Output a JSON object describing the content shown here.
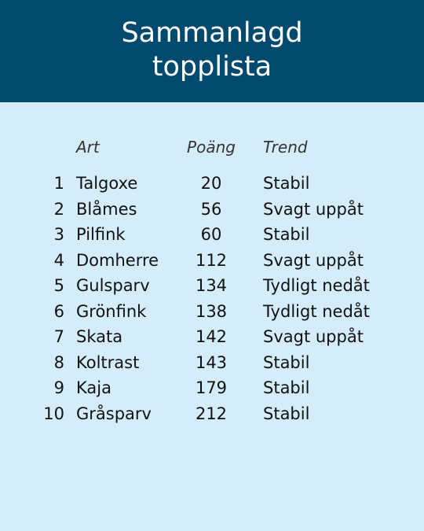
{
  "header": {
    "title": "Sammanlagd topplista",
    "background": "#004a6e"
  },
  "table": {
    "columns": {
      "species": "Art",
      "points": "Poäng",
      "trend": "Trend"
    },
    "rows": [
      {
        "rank": "1",
        "species": "Talgoxe",
        "points": "20",
        "trend": "Stabil"
      },
      {
        "rank": "2",
        "species": "Blåmes",
        "points": "56",
        "trend": "Svagt uppåt"
      },
      {
        "rank": "3",
        "species": "Pilfink",
        "points": "60",
        "trend": "Stabil"
      },
      {
        "rank": "4",
        "species": "Domherre",
        "points": "112",
        "trend": "Svagt uppåt"
      },
      {
        "rank": "5",
        "species": "Gulsparv",
        "points": "134",
        "trend": "Tydligt nedåt"
      },
      {
        "rank": "6",
        "species": "Grönfink",
        "points": "138",
        "trend": "Tydligt nedåt"
      },
      {
        "rank": "7",
        "species": "Skata",
        "points": "142",
        "trend": "Svagt uppåt"
      },
      {
        "rank": "8",
        "species": "Koltrast",
        "points": "143",
        "trend": "Stabil"
      },
      {
        "rank": "9",
        "species": "Kaja",
        "points": "179",
        "trend": "Stabil"
      },
      {
        "rank": "10",
        "species": "Gråsparv",
        "points": "212",
        "trend": "Stabil"
      }
    ]
  },
  "colors": {
    "page_background": "#d5edfb",
    "title_text": "#ffffff"
  }
}
